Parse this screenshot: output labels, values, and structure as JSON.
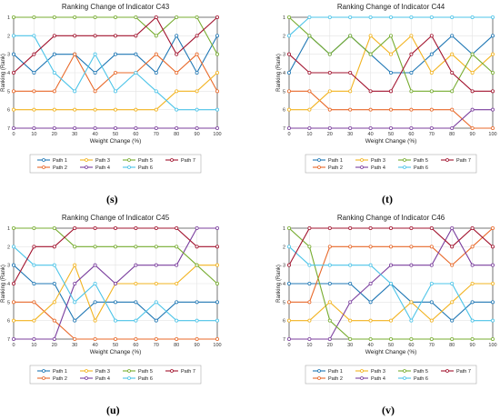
{
  "panels": [
    {
      "tag": "(s)",
      "chart_data": {
        "type": "line",
        "title": "Ranking Change of Indicator C43",
        "xlabel": "Weight Change (%)",
        "ylabel": "Ranking (Rank)",
        "x": [
          0,
          10,
          20,
          30,
          40,
          50,
          60,
          70,
          80,
          90,
          100
        ],
        "xlim": [
          0,
          100
        ],
        "ylim": [
          7,
          1
        ],
        "yticks": [
          1,
          2,
          3,
          4,
          5,
          6,
          7
        ],
        "grid": true,
        "legend_position": "bottom",
        "series": [
          {
            "name": "Path 1",
            "color": "#1f77b4",
            "values": [
              3,
              4,
              3,
              3,
              4,
              3,
              3,
              4,
              2,
              4,
              2
            ]
          },
          {
            "name": "Path 2",
            "color": "#e8692a",
            "values": [
              5,
              5,
              5,
              3,
              5,
              4,
              4,
              3,
              4,
              3,
              5
            ]
          },
          {
            "name": "Path 3",
            "color": "#f2b320",
            "values": [
              6,
              6,
              6,
              6,
              6,
              6,
              6,
              6,
              5,
              5,
              4
            ]
          },
          {
            "name": "Path 4",
            "color": "#7b3f9e",
            "values": [
              7,
              7,
              7,
              7,
              7,
              7,
              7,
              7,
              7,
              7,
              7
            ]
          },
          {
            "name": "Path 5",
            "color": "#77ac30",
            "values": [
              1,
              1,
              1,
              1,
              1,
              1,
              1,
              2,
              1,
              1,
              3
            ]
          },
          {
            "name": "Path 6",
            "color": "#4dc4e8",
            "values": [
              2,
              2,
              4,
              5,
              3,
              5,
              4,
              5,
              6,
              6,
              6
            ]
          },
          {
            "name": "Path 7",
            "color": "#a2142f",
            "values": [
              4,
              3,
              2,
              2,
              2,
              2,
              2,
              1,
              3,
              2,
              1
            ]
          }
        ]
      }
    },
    {
      "tag": "(t)",
      "chart_data": {
        "type": "line",
        "title": "Ranking Change of Indicator C44",
        "xlabel": "Weight Change (%)",
        "ylabel": "Ranking (Rank)",
        "x": [
          0,
          10,
          20,
          30,
          40,
          50,
          60,
          70,
          80,
          90,
          100
        ],
        "xlim": [
          0,
          100
        ],
        "ylim": [
          7,
          1
        ],
        "yticks": [
          1,
          2,
          3,
          4,
          5,
          6,
          7
        ],
        "grid": true,
        "legend_position": "bottom",
        "series": [
          {
            "name": "Path 1",
            "color": "#1f77b4",
            "values": [
              4,
              2,
              3,
              2,
              3,
              4,
              4,
              3,
              2,
              3,
              2
            ]
          },
          {
            "name": "Path 2",
            "color": "#e8692a",
            "values": [
              5,
              5,
              6,
              6,
              6,
              6,
              6,
              6,
              6,
              7,
              7
            ]
          },
          {
            "name": "Path 3",
            "color": "#f2b320",
            "values": [
              6,
              6,
              5,
              5,
              2,
              3,
              2,
              4,
              3,
              4,
              3
            ]
          },
          {
            "name": "Path 4",
            "color": "#7b3f9e",
            "values": [
              7,
              7,
              7,
              7,
              7,
              7,
              7,
              7,
              7,
              6,
              6
            ]
          },
          {
            "name": "Path 5",
            "color": "#77ac30",
            "values": [
              1,
              2,
              3,
              2,
              3,
              2,
              5,
              5,
              5,
              3,
              4
            ]
          },
          {
            "name": "Path 6",
            "color": "#4dc4e8",
            "values": [
              2,
              1,
              1,
              1,
              1,
              1,
              1,
              1,
              1,
              1,
              1
            ]
          },
          {
            "name": "Path 7",
            "color": "#a2142f",
            "values": [
              3,
              4,
              4,
              4,
              5,
              5,
              3,
              2,
              4,
              5,
              5
            ]
          }
        ]
      }
    },
    {
      "tag": "(u)",
      "chart_data": {
        "type": "line",
        "title": "Ranking Change of Indicator C45",
        "xlabel": "Weight Change (%)",
        "ylabel": "Ranking (Rank)",
        "x": [
          0,
          10,
          20,
          30,
          40,
          50,
          60,
          70,
          80,
          90,
          100
        ],
        "xlim": [
          0,
          100
        ],
        "ylim": [
          7,
          1
        ],
        "yticks": [
          1,
          2,
          3,
          4,
          5,
          6,
          7
        ],
        "grid": true,
        "legend_position": "bottom",
        "series": [
          {
            "name": "Path 1",
            "color": "#1f77b4",
            "values": [
              3,
              4,
              4,
              6,
              5,
              5,
              5,
              6,
              5,
              5,
              5
            ]
          },
          {
            "name": "Path 2",
            "color": "#e8692a",
            "values": [
              5,
              5,
              6,
              7,
              7,
              7,
              7,
              7,
              7,
              7,
              7
            ]
          },
          {
            "name": "Path 3",
            "color": "#f2b320",
            "values": [
              6,
              6,
              5,
              3,
              6,
              4,
              4,
              4,
              4,
              3,
              3
            ]
          },
          {
            "name": "Path 4",
            "color": "#7b3f9e",
            "values": [
              7,
              7,
              7,
              4,
              3,
              4,
              3,
              3,
              3,
              1,
              1
            ]
          },
          {
            "name": "Path 5",
            "color": "#77ac30",
            "values": [
              1,
              1,
              1,
              2,
              2,
              2,
              2,
              2,
              2,
              3,
              4
            ]
          },
          {
            "name": "Path 6",
            "color": "#4dc4e8",
            "values": [
              2,
              3,
              3,
              5,
              4,
              6,
              6,
              5,
              6,
              6,
              6
            ]
          },
          {
            "name": "Path 7",
            "color": "#a2142f",
            "values": [
              4,
              2,
              2,
              1,
              1,
              1,
              1,
              1,
              1,
              2,
              2
            ]
          }
        ]
      }
    },
    {
      "tag": "(v)",
      "chart_data": {
        "type": "line",
        "title": "Ranking Change of Indicator C46",
        "xlabel": "Weight Change (%)",
        "ylabel": "Ranking (Rank)",
        "x": [
          0,
          10,
          20,
          30,
          40,
          50,
          60,
          70,
          80,
          90,
          100
        ],
        "xlim": [
          0,
          100
        ],
        "ylim": [
          7,
          1
        ],
        "yticks": [
          1,
          2,
          3,
          4,
          5,
          6,
          7
        ],
        "grid": true,
        "legend_position": "bottom",
        "series": [
          {
            "name": "Path 1",
            "color": "#1f77b4",
            "values": [
              4,
              4,
              4,
              4,
              5,
              4,
              5,
              5,
              6,
              5,
              5
            ]
          },
          {
            "name": "Path 2",
            "color": "#e8692a",
            "values": [
              5,
              5,
              2,
              2,
              2,
              2,
              2,
              2,
              3,
              2,
              1
            ]
          },
          {
            "name": "Path 3",
            "color": "#f2b320",
            "values": [
              6,
              6,
              5,
              6,
              6,
              6,
              5,
              6,
              5,
              4,
              4
            ]
          },
          {
            "name": "Path 4",
            "color": "#7b3f9e",
            "values": [
              7,
              7,
              7,
              5,
              4,
              3,
              3,
              3,
              1,
              3,
              3
            ]
          },
          {
            "name": "Path 5",
            "color": "#77ac30",
            "values": [
              1,
              2,
              6,
              7,
              7,
              7,
              7,
              7,
              7,
              7,
              7
            ]
          },
          {
            "name": "Path 6",
            "color": "#4dc4e8",
            "values": [
              2,
              3,
              3,
              3,
              3,
              4,
              6,
              4,
              4,
              6,
              6
            ]
          },
          {
            "name": "Path 7",
            "color": "#a2142f",
            "values": [
              3,
              1,
              1,
              1,
              1,
              1,
              1,
              1,
              2,
              1,
              2
            ]
          }
        ]
      }
    }
  ]
}
